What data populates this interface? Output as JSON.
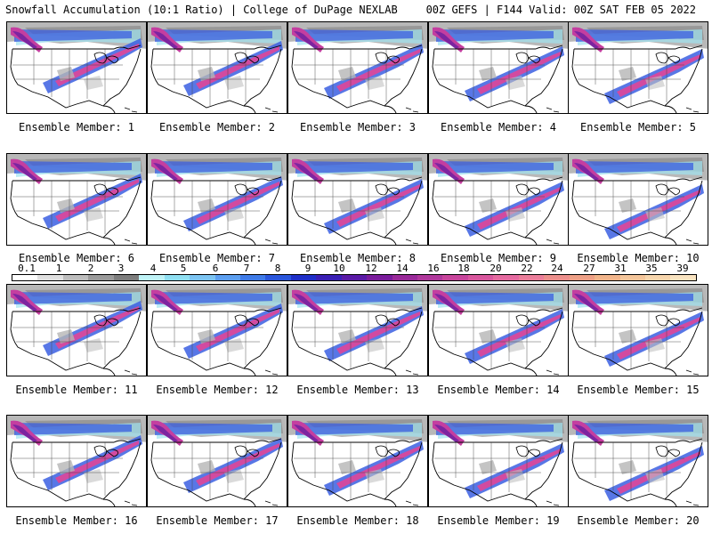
{
  "header": {
    "title": "Snowfall Accumulation (10:1 Ratio) | College of DuPage NEXLAB",
    "valid": "00Z GEFS | F144 Valid: 00Z SAT FEB 05 2022"
  },
  "members": [
    "Ensemble Member: 1",
    "Ensemble Member: 2",
    "Ensemble Member: 3",
    "Ensemble Member: 4",
    "Ensemble Member: 5",
    "Ensemble Member: 6",
    "Ensemble Member: 7",
    "Ensemble Member: 8",
    "Ensemble Member: 9",
    "Ensemble Member: 10",
    "Ensemble Member: 11",
    "Ensemble Member: 12",
    "Ensemble Member: 13",
    "Ensemble Member: 14",
    "Ensemble Member: 15",
    "Ensemble Member: 16",
    "Ensemble Member: 17",
    "Ensemble Member: 18",
    "Ensemble Member: 19",
    "Ensemble Member: 20"
  ],
  "scale": {
    "labels": [
      "0.1",
      "1",
      "2",
      "3",
      "4",
      "5",
      "6",
      "7",
      "8",
      "9",
      "10",
      "12",
      "14",
      "16",
      "18",
      "20",
      "22",
      "24",
      "27",
      "31",
      "35",
      "39"
    ],
    "colors": [
      "#ffffff",
      "#e0e0e0",
      "#bdbdbd",
      "#9a9a9a",
      "#7d7d7d",
      "#bff3f7",
      "#8fdff2",
      "#7cc4f2",
      "#5c9ff0",
      "#3f7be8",
      "#2a56dc",
      "#1f2fc8",
      "#3a1fb4",
      "#5a1aa6",
      "#7a1c9c",
      "#9a2a9a",
      "#b0389c",
      "#c8459c",
      "#d9579e",
      "#e56aa0",
      "#ea7d9a",
      "#ec8f8c",
      "#eea086",
      "#f1b48a",
      "#f4c59a",
      "#f7d5ac",
      "#f9e3c0"
    ]
  }
}
